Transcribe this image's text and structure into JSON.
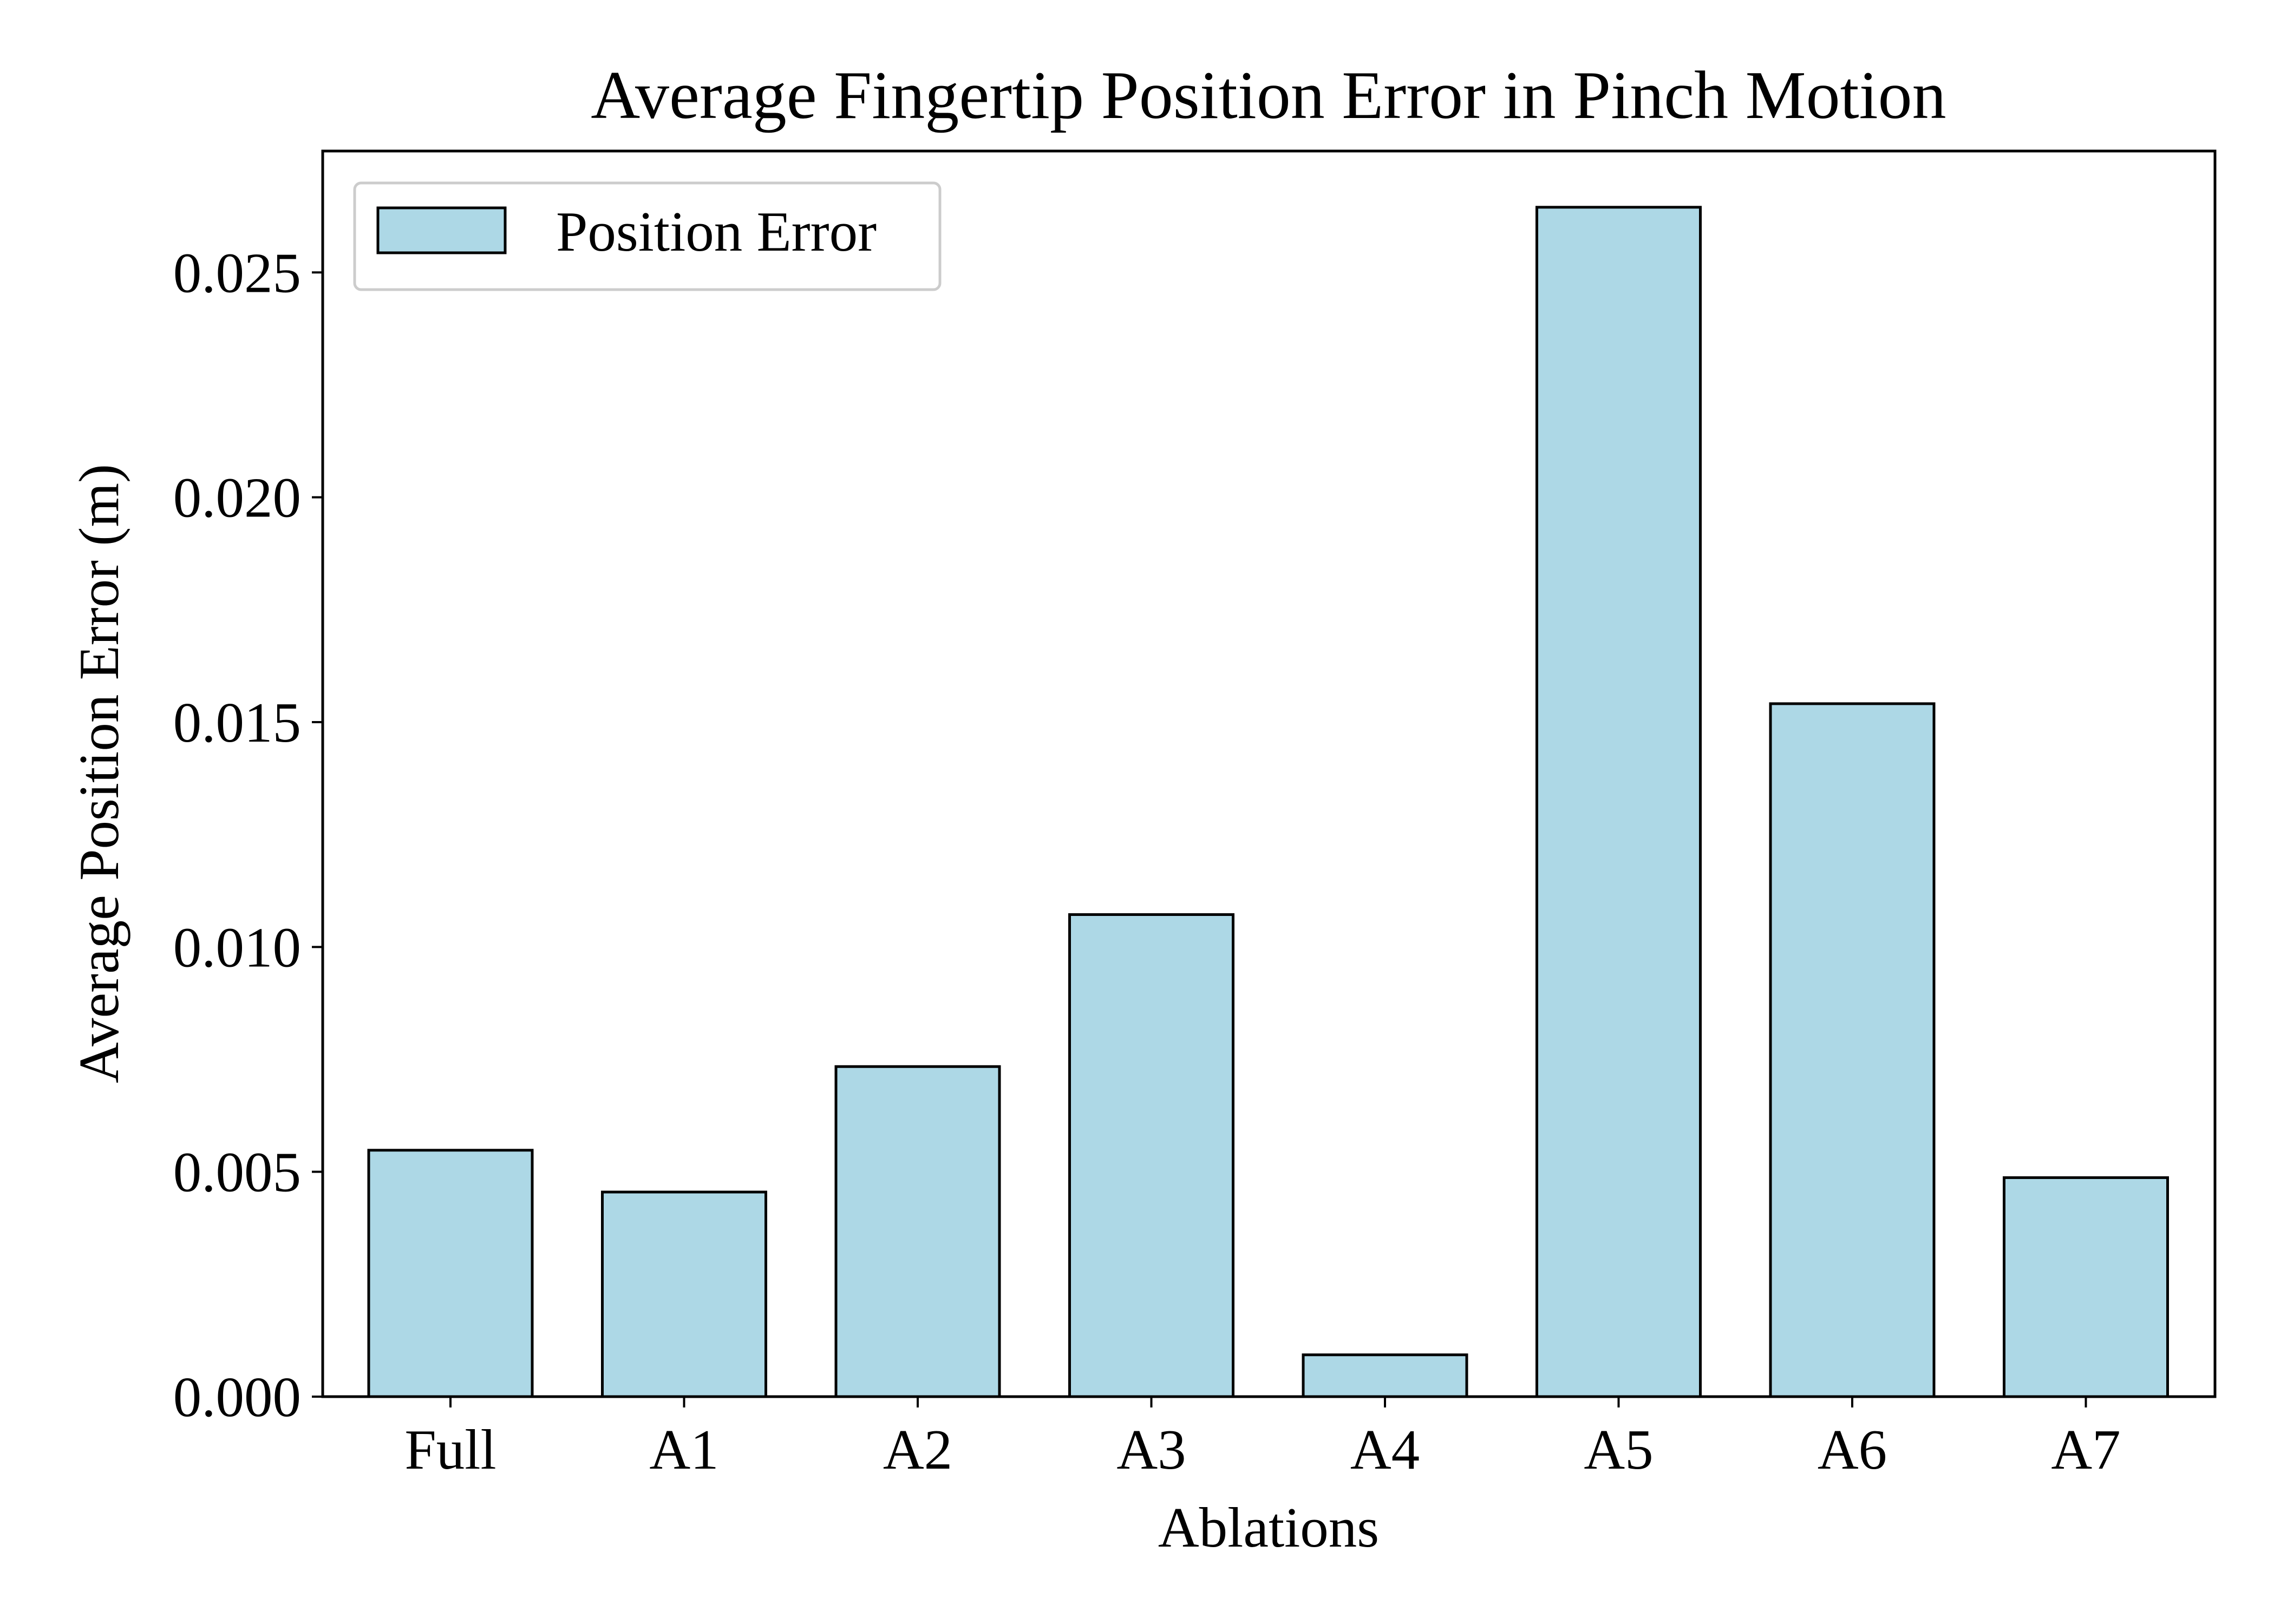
{
  "chart_data": {
    "type": "bar",
    "title": "Average Fingertip Position Error in Pinch Motion",
    "xlabel": "Ablations",
    "ylabel": "Average Position Error (m)",
    "categories": [
      "Full",
      "A1",
      "A2",
      "A3",
      "A4",
      "A5",
      "A6",
      "A7"
    ],
    "series": [
      {
        "name": "Position Error",
        "values": [
          0.00548,
          0.00455,
          0.00734,
          0.01072,
          0.00093,
          0.02645,
          0.01541,
          0.00487
        ]
      }
    ],
    "ylim": [
      0,
      0.0277
    ],
    "yticks": [
      "0.000",
      "0.005",
      "0.010",
      "0.015",
      "0.020",
      "0.025"
    ],
    "ytick_values": [
      0,
      0.005,
      0.01,
      0.015,
      0.02,
      0.025
    ],
    "grid": false,
    "legend": "upper-left",
    "colors": {
      "bar_fill": "#add8e6",
      "bar_edge": "#000000",
      "axis": "#000000",
      "legend_frame": "#cccccc"
    }
  }
}
